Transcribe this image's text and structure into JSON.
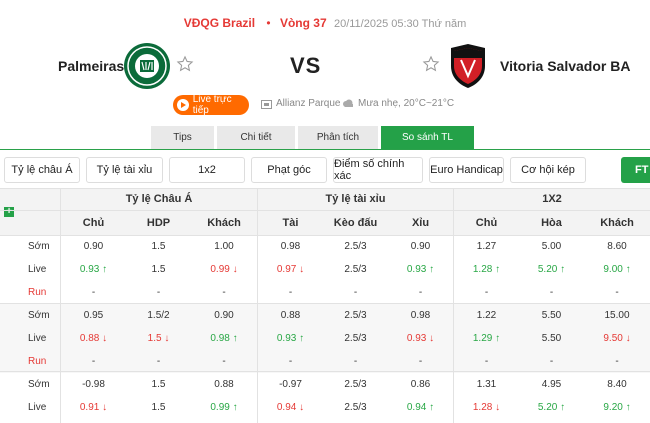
{
  "header": {
    "league": "VĐQG Brazil",
    "round": "Vòng 37",
    "datetime": "20/11/2025 05:30 Thứ năm",
    "home_team": "Palmeiras",
    "away_team": "Vitoria Salvador BA",
    "vs": "VS",
    "live_label": "Live trực tiếp",
    "venue": "Allianz Parque",
    "weather": "Mưa nhẹ, 20°C~21°C"
  },
  "tabs": [
    "Tips",
    "Chi tiết",
    "Phân tích",
    "So sánh TL"
  ],
  "active_tab": "So sánh TL",
  "filters": [
    "Tỷ lệ châu Á",
    "Tỷ lệ tài xỉu",
    "1x2",
    "Phạt góc",
    "Điểm số chính xác",
    "Euro Handicap",
    "Cơ hội kép"
  ],
  "ft_label": "FT",
  "groups": [
    "Tỷ lệ Châu Á",
    "Tỷ lệ tài xỉu",
    "1X2"
  ],
  "columns": [
    "Chủ",
    "HDP",
    "Khách",
    "Tài",
    "Kèo đấu",
    "Xỉu",
    "Chủ",
    "Hòa",
    "Khách"
  ],
  "colors": {
    "accent": "#24a148",
    "up": "#28a745",
    "down": "#e53935",
    "live_button": "#ff6a00"
  },
  "rows": [
    {
      "label": "Sớm",
      "cells": [
        "0.90",
        "1.5",
        "1.00",
        "0.98",
        "2.5/3",
        "0.90",
        "1.27",
        "5.00",
        "8.60"
      ]
    },
    {
      "label": "Live",
      "cells": [
        "0.93 ↑",
        "1.5",
        "0.99 ↓",
        "0.97 ↓",
        "2.5/3",
        "0.93 ↑",
        "1.28 ↑",
        "5.20 ↑",
        "9.00 ↑"
      ]
    },
    {
      "label": "Run",
      "cells": [
        "-",
        "-",
        "-",
        "-",
        "-",
        "-",
        "-",
        "-",
        "-"
      ]
    },
    {
      "label": "Sớm",
      "cells": [
        "0.95",
        "1.5/2",
        "0.90",
        "0.88",
        "2.5/3",
        "0.98",
        "1.22",
        "5.50",
        "15.00"
      ]
    },
    {
      "label": "Live",
      "cells": [
        "0.88 ↓",
        "1.5 ↓",
        "0.98 ↑",
        "0.93 ↑",
        "2.5/3",
        "0.93 ↓",
        "1.29 ↑",
        "5.50",
        "9.50 ↓"
      ]
    },
    {
      "label": "Run",
      "cells": [
        "-",
        "-",
        "-",
        "-",
        "-",
        "-",
        "-",
        "-",
        "-"
      ]
    },
    {
      "label": "Sớm",
      "cells": [
        "-0.98",
        "1.5",
        "0.88",
        "-0.97",
        "2.5/3",
        "0.86",
        "1.31",
        "4.95",
        "8.40"
      ]
    },
    {
      "label": "Live",
      "cells": [
        "0.91 ↓",
        "1.5",
        "0.99 ↑",
        "0.94 ↓",
        "2.5/3",
        "0.94 ↑",
        "1.28 ↓",
        "5.20 ↑",
        "9.20 ↑"
      ]
    }
  ]
}
